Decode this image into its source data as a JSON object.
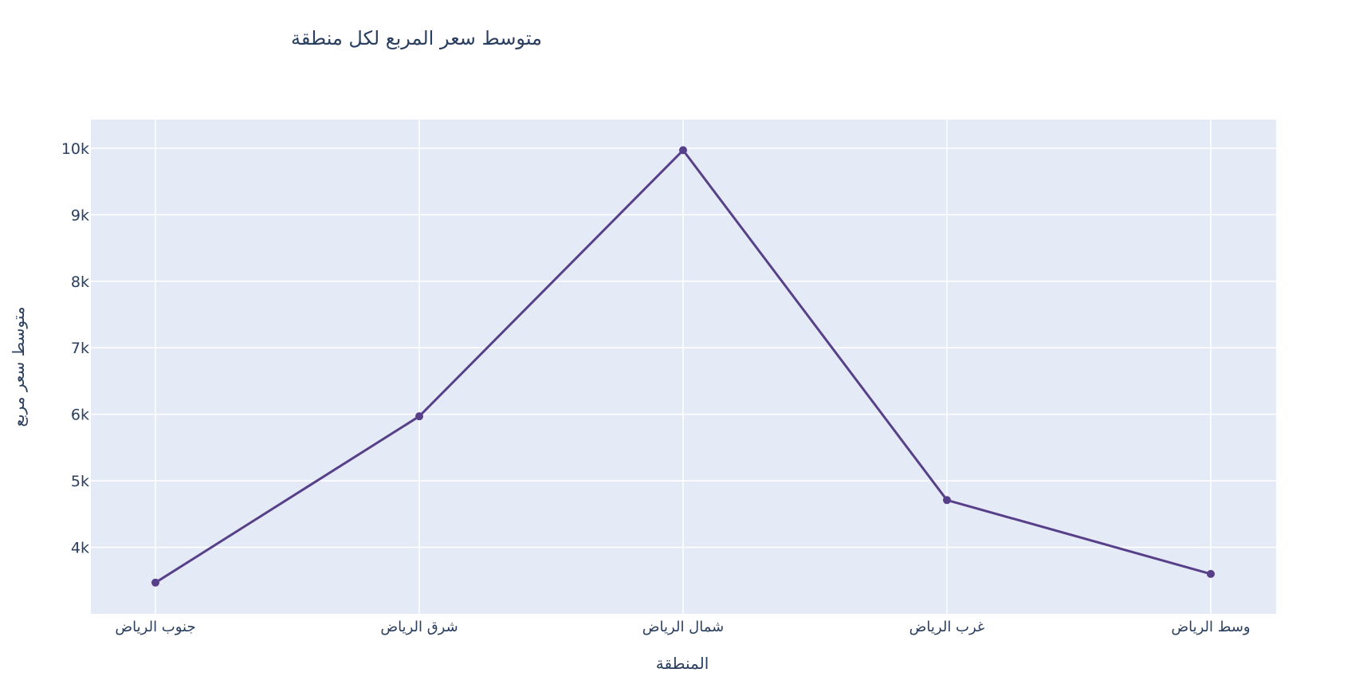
{
  "chart_data": {
    "type": "line",
    "title": "متوسط سعر المربع لكل منطقة",
    "xlabel": "المنطقة",
    "ylabel": "متوسط سعر مربع",
    "categories": [
      "جنوب الرياض",
      "شرق الرياض",
      "شمال الرياض",
      "غرب الرياض",
      "وسط الرياض"
    ],
    "series": [
      {
        "values": [
          3470,
          5970,
          9970,
          4710,
          3600
        ]
      }
    ],
    "ylim": [
      3000,
      10430
    ],
    "yticks": [
      4000,
      5000,
      6000,
      7000,
      8000,
      9000,
      10000
    ],
    "ytick_labels": [
      "4k",
      "5k",
      "6k",
      "7k",
      "8k",
      "9k",
      "10k"
    ],
    "grid": true,
    "legend": false,
    "colors": {
      "line": "#574089",
      "plot_background": "#e5ebf6",
      "grid": "#ffffff",
      "text": "#2a3f5f"
    }
  }
}
